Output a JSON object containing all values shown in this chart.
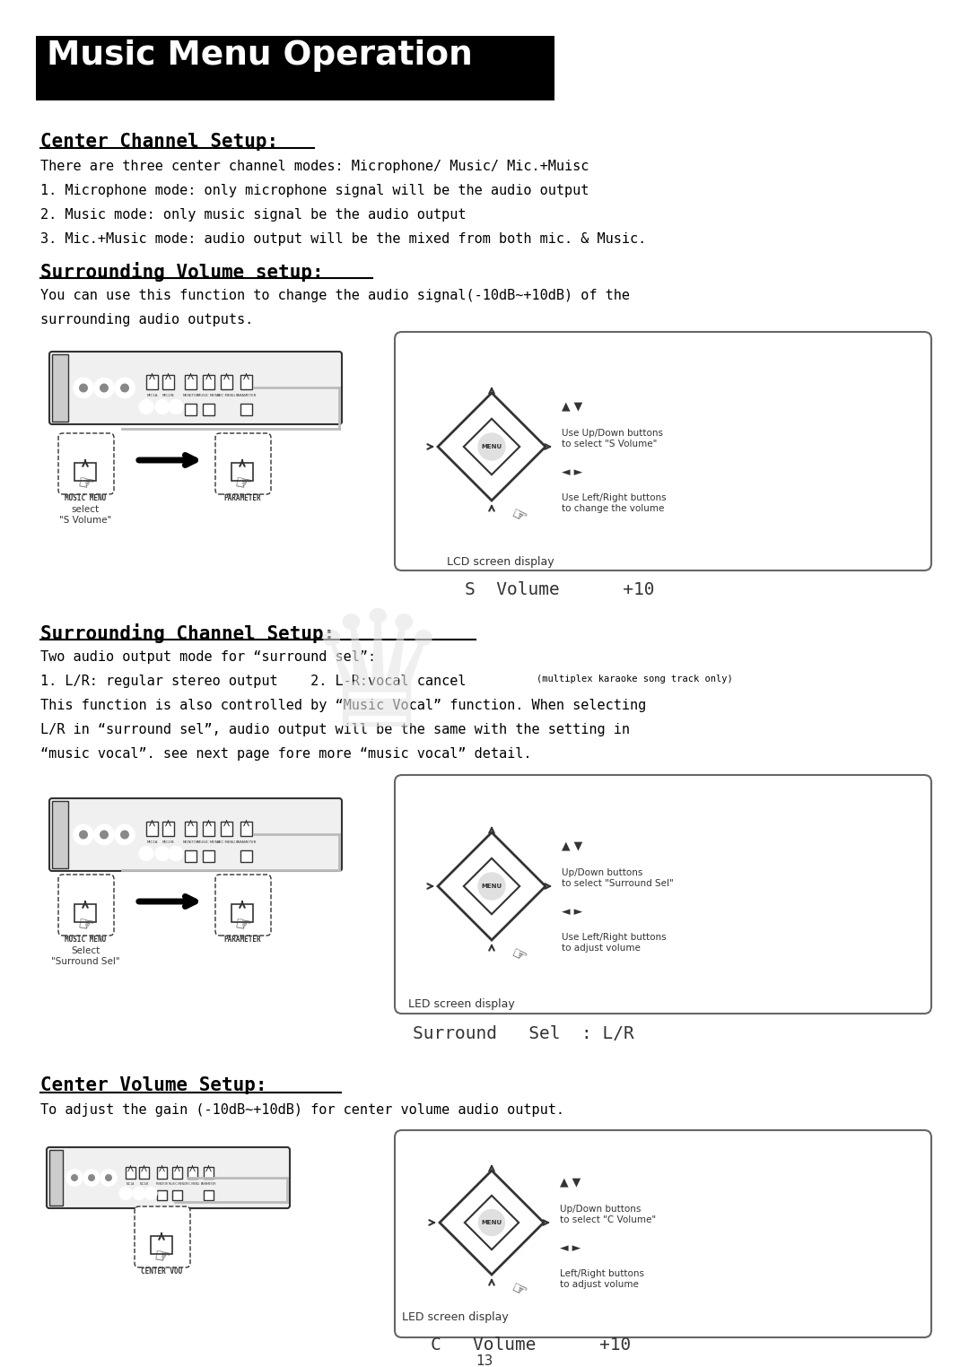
{
  "bg_color": "#ffffff",
  "page_width": 10.8,
  "page_height": 15.24,
  "title_text": "Music Menu Operation",
  "title_bg": "#000000",
  "title_fg": "#ffffff",
  "sections": [
    {
      "heading": "Center Channel Setup:",
      "body_lines": [
        "There are three center channel modes: Microphone/ Music/ Mic.+Muisc",
        "1. Microphone mode: only microphone signal will be the audio output",
        "2. Music mode: only music signal be the audio output",
        "3. Mic.+Music mode: audio output will be the mixed from both mic. & Music."
      ]
    },
    {
      "heading": "Surrounding Volume setup:",
      "body_lines": [
        "You can use this function to change the audio signal(-10dB~+10dB) of the",
        "surrounding audio outputs."
      ]
    },
    {
      "heading": "Surrounding Channel Setup:",
      "body_lines": [
        "Two audio output mode for “surround sel”:",
        "1. L/R: regular stereo output    2. L-R:vocal cancel (multiplex karaoke song track only)",
        "This function is also controlled by “Music Vocal” function. When selecting",
        "L/R in “surround sel”, audio output will be the same with the setting in",
        "“music vocal”. see next page fore more “music vocal” detail."
      ]
    },
    {
      "heading": "Center Volume Setup:",
      "body_lines": [
        "To adjust the gain (-10dB~+10dB) for center volume audio output."
      ]
    }
  ],
  "diagram1": {
    "label_left": "MUSIC MENU",
    "label_right": "PARAMETER",
    "select_text": "select\n\"S Volume\"",
    "box_label_right": "LCD screen display",
    "lcd_text": "S  Volume      +10",
    "up_down_text": "Use Up/Down buttons\nto select \"S Volume\"",
    "left_right_text": "Use Left/Right buttons\nto change the volume"
  },
  "diagram2": {
    "label_left": "MUSIC MENU",
    "label_right": "PARAMETER",
    "select_text": "Select\n\"Surround Sel\"",
    "box_label_right": "LED screen display",
    "lcd_text": "Surround   Sel  : L/R",
    "up_down_text": "Up/Down buttons\nto select \"Surround Sel\"",
    "left_right_text": "Use Left/Right buttons\nto adjust volume"
  },
  "diagram3": {
    "label_center": "CENTER VOU",
    "box_label_right": "LED screen display",
    "lcd_text": "C   Volume      +10",
    "up_down_text": "Up/Down buttons\nto select \"C Volume\"",
    "left_right_text": "Left/Right buttons\nto adjust volume"
  },
  "page_number": "13",
  "watermark": true
}
